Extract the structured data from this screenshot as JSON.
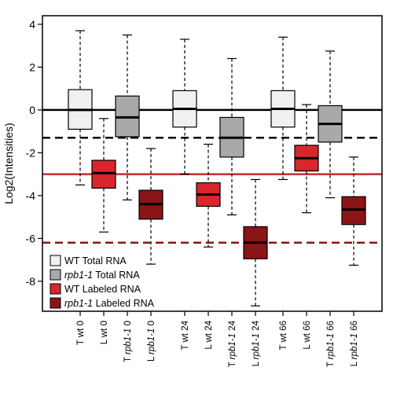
{
  "chart_data": {
    "type": "box",
    "ylabel": "Log2(Intensities)",
    "ylim": [
      -9.4,
      4.4
    ],
    "yticks": [
      -8,
      -6,
      -4,
      -2,
      0,
      2,
      4
    ],
    "groups": [
      {
        "boxes": [
          {
            "label": {
              "prefix": "T",
              "strain": "wt",
              "strain_italic": false,
              "time": "0"
            },
            "series": 0,
            "whisker_low": -3.5,
            "q1": -0.9,
            "median": 0.0,
            "q3": 0.95,
            "whisker_high": 3.7
          },
          {
            "label": {
              "prefix": "L",
              "strain": "wt",
              "strain_italic": false,
              "time": "0"
            },
            "series": 2,
            "whisker_low": -5.7,
            "q1": -3.65,
            "median": -2.95,
            "q3": -2.35,
            "whisker_high": -0.4
          },
          {
            "label": {
              "prefix": "T",
              "strain": "rpb1-1",
              "strain_italic": true,
              "time": "0"
            },
            "series": 1,
            "whisker_low": -4.2,
            "q1": -1.25,
            "median": -0.35,
            "q3": 0.65,
            "whisker_high": 3.5
          },
          {
            "label": {
              "prefix": "L",
              "strain": "rpb1-1",
              "strain_italic": true,
              "time": "0"
            },
            "series": 3,
            "whisker_low": -7.2,
            "q1": -5.1,
            "median": -4.4,
            "q3": -3.75,
            "whisker_high": -1.8
          }
        ]
      },
      {
        "boxes": [
          {
            "label": {
              "prefix": "T",
              "strain": "wt",
              "strain_italic": false,
              "time": "24"
            },
            "series": 0,
            "whisker_low": -3.0,
            "q1": -0.8,
            "median": 0.05,
            "q3": 0.9,
            "whisker_high": 3.3
          },
          {
            "label": {
              "prefix": "L",
              "strain": "wt",
              "strain_italic": false,
              "time": "24"
            },
            "series": 2,
            "whisker_low": -6.4,
            "q1": -4.5,
            "median": -3.95,
            "q3": -3.4,
            "whisker_high": -1.6
          },
          {
            "label": {
              "prefix": "T",
              "strain": "rpb1-1",
              "strain_italic": true,
              "time": "24"
            },
            "series": 1,
            "whisker_low": -4.9,
            "q1": -2.2,
            "median": -1.3,
            "q3": -0.35,
            "whisker_high": 2.4
          },
          {
            "label": {
              "prefix": "L",
              "strain": "rpb1-1",
              "strain_italic": true,
              "time": "24"
            },
            "series": 3,
            "whisker_low": -9.15,
            "q1": -6.95,
            "median": -6.2,
            "q3": -5.45,
            "whisker_high": -3.25
          }
        ]
      },
      {
        "boxes": [
          {
            "label": {
              "prefix": "T",
              "strain": "wt",
              "strain_italic": false,
              "time": "66"
            },
            "series": 0,
            "whisker_low": -3.25,
            "q1": -0.8,
            "median": 0.05,
            "q3": 0.9,
            "whisker_high": 3.4
          },
          {
            "label": {
              "prefix": "L",
              "strain": "wt",
              "strain_italic": false,
              "time": "66"
            },
            "series": 2,
            "whisker_low": -4.8,
            "q1": -2.85,
            "median": -2.25,
            "q3": -1.65,
            "whisker_high": 0.25
          },
          {
            "label": {
              "prefix": "T",
              "strain": "rpb1-1",
              "strain_italic": true,
              "time": "66"
            },
            "series": 1,
            "whisker_low": -4.1,
            "q1": -1.5,
            "median": -0.65,
            "q3": 0.2,
            "whisker_high": 2.75
          },
          {
            "label": {
              "prefix": "L",
              "strain": "rpb1-1",
              "strain_italic": true,
              "time": "66"
            },
            "series": 3,
            "whisker_low": -7.25,
            "q1": -5.35,
            "median": -4.65,
            "q3": -4.05,
            "whisker_high": -2.2
          }
        ]
      }
    ],
    "series": [
      {
        "name": [
          {
            "text": "WT",
            "italic": false
          },
          {
            "text": " Total RNA",
            "italic": false
          }
        ],
        "color": "#f0f0f0"
      },
      {
        "name": [
          {
            "text": "rpb1-1",
            "italic": true
          },
          {
            "text": " Total RNA",
            "italic": false
          }
        ],
        "color": "#a9a9a9"
      },
      {
        "name": [
          {
            "text": "WT",
            "italic": false
          },
          {
            "text": " Labeled RNA",
            "italic": false
          }
        ],
        "color": "#d9262c"
      },
      {
        "name": [
          {
            "text": "rpb1-1",
            "italic": true
          },
          {
            "text": " Labeled RNA",
            "italic": false
          }
        ],
        "color": "#8b1417"
      }
    ],
    "reference_lines": [
      {
        "y": 0.0,
        "color": "#000000",
        "style": "solid"
      },
      {
        "y": -1.3,
        "color": "#000000",
        "style": "dashed"
      },
      {
        "y": -3.0,
        "color": "#c62a2e",
        "style": "solid"
      },
      {
        "y": -6.2,
        "color": "#8b1417",
        "style": "dashed"
      }
    ],
    "legend_position": "bottom-left",
    "grid": false
  }
}
